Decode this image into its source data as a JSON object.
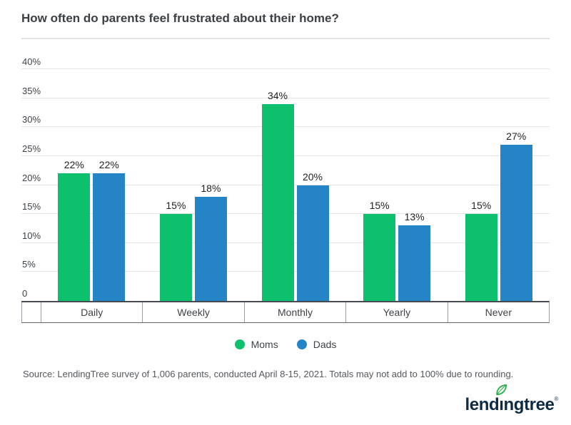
{
  "title": "How often do parents feel frustrated about their home?",
  "chart_data": {
    "type": "bar",
    "categories": [
      "Daily",
      "Weekly",
      "Monthly",
      "Yearly",
      "Never"
    ],
    "series": [
      {
        "name": "Moms",
        "color": "#0cc06e",
        "values": [
          22,
          15,
          34,
          15,
          15
        ]
      },
      {
        "name": "Dads",
        "color": "#2484c6",
        "values": [
          22,
          18,
          20,
          13,
          27
        ]
      }
    ],
    "value_suffix": "%",
    "y_ticks": [
      0,
      5,
      10,
      15,
      20,
      25,
      30,
      35,
      40
    ],
    "y_tick_labels": [
      "0",
      "5%",
      "10%",
      "15%",
      "20%",
      "25%",
      "30%",
      "35%",
      "40%"
    ],
    "ylim": [
      0,
      40
    ],
    "grid": true,
    "legend_position": "bottom"
  },
  "legend": {
    "items": [
      {
        "label": "Moms",
        "color": "#0cc06e"
      },
      {
        "label": "Dads",
        "color": "#2484c6"
      }
    ]
  },
  "source": "Source: LendingTree survey of 1,006 parents, conducted April 8-15, 2021. Totals may not add to 100% due to rounding.",
  "logo": {
    "text_before_leaf": "lend",
    "dotless_i": "ı",
    "text_after_leaf": "ngtree",
    "registered": "®",
    "leaf_color": "#2db24b",
    "text_color": "#0d2b44"
  }
}
